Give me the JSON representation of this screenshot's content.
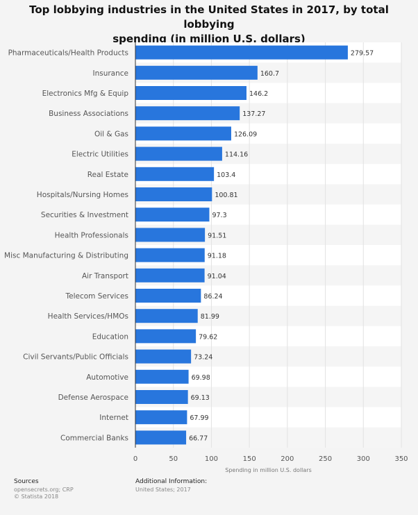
{
  "chart_data": {
    "type": "bar",
    "orientation": "horizontal",
    "title": "Top lobbying industries in the United States in 2017, by total lobbying spending (in million U.S. dollars)",
    "title_lines": [
      "Top lobbying industries in the United States in 2017, by total lobbying",
      "spending (in million U.S. dollars)"
    ],
    "categories": [
      "Pharmaceuticals/Health Products",
      "Insurance",
      "Electronics Mfg & Equip",
      "Business Associations",
      "Oil & Gas",
      "Electric Utilities",
      "Real Estate",
      "Hospitals/Nursing Homes",
      "Securities & Investment",
      "Health Professionals",
      "Misc Manufacturing & Distributing",
      "Air Transport",
      "Telecom Services",
      "Health Services/HMOs",
      "Education",
      "Civil Servants/Public Officials",
      "Automotive",
      "Defense Aerospace",
      "Internet",
      "Commercial Banks"
    ],
    "values": [
      279.57,
      160.7,
      146.2,
      137.27,
      126.09,
      114.16,
      103.4,
      100.81,
      97.3,
      91.51,
      91.18,
      91.04,
      86.24,
      81.99,
      79.62,
      73.24,
      69.98,
      69.13,
      67.99,
      66.77
    ],
    "value_labels": [
      "279.57",
      "160.7",
      "146.2",
      "137.27",
      "126.09",
      "114.16",
      "103.4",
      "100.81",
      "97.3",
      "91.51",
      "91.18",
      "91.04",
      "86.24",
      "81.99",
      "79.62",
      "73.24",
      "69.98",
      "69.13",
      "67.99",
      "66.77"
    ],
    "xlabel": "Spending in million U.S. dollars",
    "ylabel": "",
    "xlim": [
      0,
      350
    ],
    "xticks": [
      0,
      50,
      100,
      150,
      200,
      250,
      300,
      350
    ],
    "grid": true,
    "bar_color": "#2876dd"
  },
  "footer": {
    "sources_heading": "Sources",
    "sources_line1": "opensecrets.org; CRP",
    "sources_line2": "© Statista 2018",
    "additional_heading": "Additional Information:",
    "additional_line1": "United States; 2017"
  }
}
